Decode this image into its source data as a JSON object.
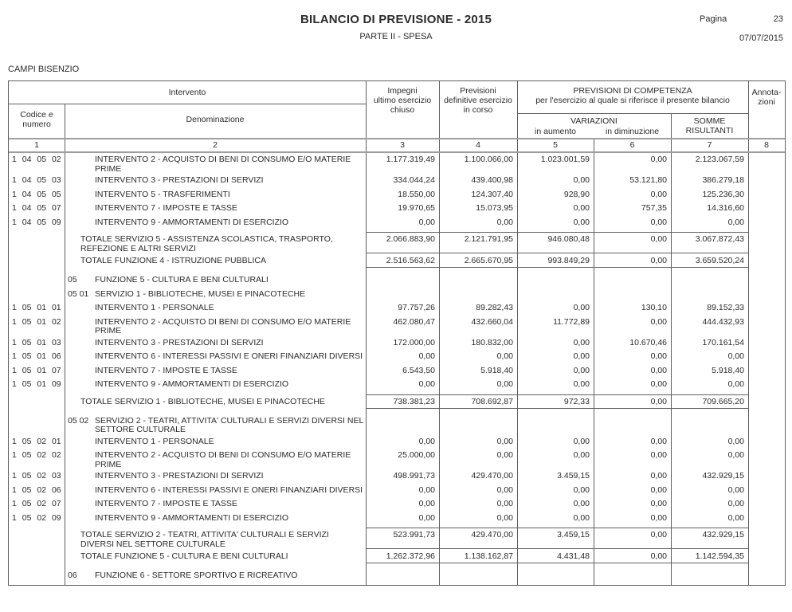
{
  "page_header": {
    "title": "BILANCIO DI PREVISIONE - 2015",
    "subtitle": "PARTE II - SPESA",
    "page_label": "Pagina",
    "page_number": "23",
    "date": "07/07/2015",
    "municipality": "CAMPI BISENZIO"
  },
  "table": {
    "head": {
      "intervento": "Intervento",
      "codice_numero": "Codice e\nnumero",
      "denominazione": "Denominazione",
      "impegni": "Impegni\nultimo esercizio\nchiuso",
      "previsioni": "Previsioni\ndefinitive esercizio\nin corso",
      "competenza": "PREVISIONI DI COMPETENZA\nper l'esercizio al quale si riferisce il presente bilancio",
      "variazioni": "VARIAZIONI",
      "in_aumento": "in aumento",
      "in_diminuzione": "in diminuzione",
      "somme_risultanti": "SOMME\nRISULTANTI",
      "annotazioni": "Annota-\nzioni",
      "column_numbers": [
        "1",
        "2",
        "3",
        "4",
        "5",
        "6",
        "7",
        "8"
      ]
    },
    "rows": [
      {
        "type": "item",
        "code": "1 04 05 02",
        "label": "INTERVENTO 2 - ACQUISTO DI BENI DI CONSUMO E/O MATERIE\nPRIME",
        "v": [
          "1.177.319,49",
          "1.100.066,00",
          "1.023.001,59",
          "0,00",
          "2.123.067,59"
        ]
      },
      {
        "type": "item",
        "code": "1 04 05 03",
        "label": "INTERVENTO 3 - PRESTAZIONI DI SERVIZI",
        "v": [
          "334.044,24",
          "439.400,98",
          "0,00",
          "53.121,80",
          "386.279,18"
        ]
      },
      {
        "type": "item",
        "code": "1 04 05 05",
        "label": "INTERVENTO 5 - TRASFERIMENTI",
        "v": [
          "18.550,00",
          "124.307,40",
          "928,90",
          "0,00",
          "125.236,30"
        ]
      },
      {
        "type": "item",
        "code": "1 04 05 07",
        "label": "INTERVENTO 7 - IMPOSTE E TASSE",
        "v": [
          "19.970,65",
          "15.073,95",
          "0,00",
          "757,35",
          "14.316,60"
        ]
      },
      {
        "type": "item",
        "code": "1 04 05 09",
        "label": "INTERVENTO 9 - AMMORTAMENTI DI ESERCIZIO",
        "v": [
          "0,00",
          "0,00",
          "0,00",
          "0,00",
          "0,00"
        ]
      },
      {
        "type": "total",
        "label": "TOTALE SERVIZIO 5 - ASSISTENZA SCOLASTICA, TRASPORTO,\nREFEZIONE E ALTRI SERVIZI",
        "v": [
          "2.066.883,90",
          "2.121.791,95",
          "946.080,48",
          "0,00",
          "3.067.872,43"
        ]
      },
      {
        "type": "total",
        "label": "TOTALE FUNZIONE 4 - ISTRUZIONE PUBBLICA",
        "v": [
          "2.516.563,62",
          "2.665.670,95",
          "993.849,29",
          "0,00",
          "3.659.520,24"
        ]
      },
      {
        "type": "section",
        "code": "05",
        "label": "FUNZIONE 5 - CULTURA E BENI CULTURALI"
      },
      {
        "type": "section",
        "code": "05 01",
        "label": "SERVIZIO 1 - BIBLIOTECHE, MUSEI E PINACOTECHE"
      },
      {
        "type": "item",
        "code": "1 05 01 01",
        "label": "INTERVENTO 1 - PERSONALE",
        "v": [
          "97.757,26",
          "89.282,43",
          "0,00",
          "130,10",
          "89.152,33"
        ]
      },
      {
        "type": "item",
        "code": "1 05 01 02",
        "label": "INTERVENTO 2 - ACQUISTO DI BENI DI CONSUMO E/O MATERIE\nPRIME",
        "v": [
          "462.080,47",
          "432.660,04",
          "11.772,89",
          "0,00",
          "444.432,93"
        ]
      },
      {
        "type": "item",
        "code": "1 05 01 03",
        "label": "INTERVENTO 3 - PRESTAZIONI DI SERVIZI",
        "v": [
          "172.000,00",
          "180.832,00",
          "0,00",
          "10.670,46",
          "170.161,54"
        ]
      },
      {
        "type": "item",
        "code": "1 05 01 06",
        "label": "INTERVENTO 6 - INTERESSI PASSIVI E ONERI FINANZIARI DIVERSI",
        "v": [
          "0,00",
          "0,00",
          "0,00",
          "0,00",
          "0,00"
        ]
      },
      {
        "type": "item",
        "code": "1 05 01 07",
        "label": "INTERVENTO 7 - IMPOSTE E TASSE",
        "v": [
          "6.543,50",
          "5.918,40",
          "0,00",
          "0,00",
          "5.918,40"
        ]
      },
      {
        "type": "item",
        "code": "1 05 01 09",
        "label": "INTERVENTO 9 - AMMORTAMENTI DI ESERCIZIO",
        "v": [
          "0,00",
          "0,00",
          "0,00",
          "0,00",
          "0,00"
        ]
      },
      {
        "type": "total",
        "label": "TOTALE SERVIZIO 1 - BIBLIOTECHE, MUSEI E PINACOTECHE",
        "v": [
          "738.381,23",
          "708.692,87",
          "972,33",
          "0,00",
          "709.665,20"
        ]
      },
      {
        "type": "section",
        "code": "05 02",
        "label": "SERVIZIO 2 - TEATRI, ATTIVITA' CULTURALI E SERVIZI DIVERSI NEL\nSETTORE CULTURALE"
      },
      {
        "type": "item",
        "code": "1 05 02 01",
        "label": "INTERVENTO 1 - PERSONALE",
        "v": [
          "0,00",
          "0,00",
          "0,00",
          "0,00",
          "0,00"
        ]
      },
      {
        "type": "item",
        "code": "1 05 02 02",
        "label": "INTERVENTO 2 - ACQUISTO DI BENI DI CONSUMO E/O MATERIE\nPRIME",
        "v": [
          "25.000,00",
          "0,00",
          "0,00",
          "0,00",
          "0,00"
        ]
      },
      {
        "type": "item",
        "code": "1 05 02 03",
        "label": "INTERVENTO 3 - PRESTAZIONI DI SERVIZI",
        "v": [
          "498.991,73",
          "429.470,00",
          "3.459,15",
          "0,00",
          "432.929,15"
        ]
      },
      {
        "type": "item",
        "code": "1 05 02 06",
        "label": "INTERVENTO 6 - INTERESSI PASSIVI E ONERI FINANZIARI DIVERSI",
        "v": [
          "0,00",
          "0,00",
          "0,00",
          "0,00",
          "0,00"
        ]
      },
      {
        "type": "item",
        "code": "1 05 02 07",
        "label": "INTERVENTO 7 - IMPOSTE E TASSE",
        "v": [
          "0,00",
          "0,00",
          "0,00",
          "0,00",
          "0,00"
        ]
      },
      {
        "type": "item",
        "code": "1 05 02 09",
        "label": "INTERVENTO 9 - AMMORTAMENTI DI ESERCIZIO",
        "v": [
          "0,00",
          "0,00",
          "0,00",
          "0,00",
          "0,00"
        ]
      },
      {
        "type": "total",
        "label": "TOTALE SERVIZIO 2 - TEATRI, ATTIVITA' CULTURALI E SERVIZI\nDIVERSI NEL SETTORE CULTURALE",
        "v": [
          "523.991,73",
          "429.470,00",
          "3.459,15",
          "0,00",
          "432.929,15"
        ]
      },
      {
        "type": "total",
        "label": "TOTALE FUNZIONE 5 - CULTURA E BENI CULTURALI",
        "v": [
          "1.262.372,96",
          "1.138.162,87",
          "4.431,48",
          "0,00",
          "1.142.594,35"
        ]
      },
      {
        "type": "section",
        "code": "06",
        "label": "FUNZIONE 6 - SETTORE SPORTIVO E RICREATIVO"
      }
    ]
  }
}
